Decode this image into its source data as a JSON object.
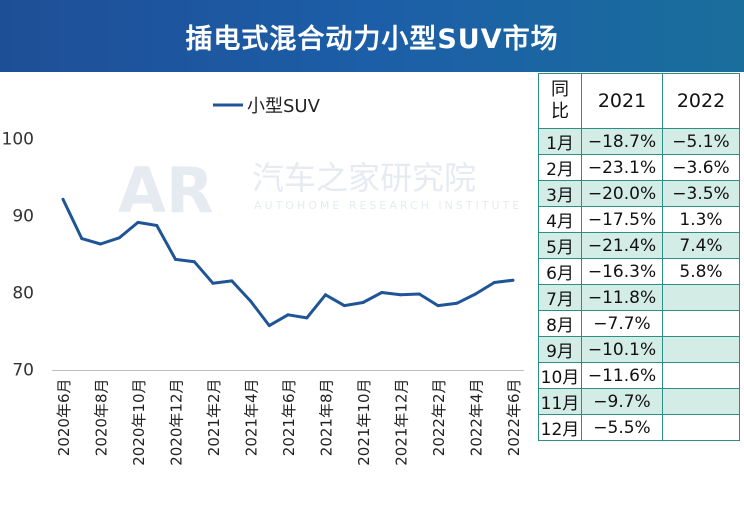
{
  "title": "插电式混合动力小型SUV市场",
  "watermark": {
    "logo": "AR",
    "cn": "汽车之家研究院",
    "en": "AUTOHOME RESEARCH INSTITUTE"
  },
  "colors": {
    "title_bar": "#1e4f96",
    "series_line": "#1f5596",
    "table_border": "#2a8f86",
    "table_shade": "#d3ece6"
  },
  "chart_data": {
    "type": "line",
    "title": "",
    "xlabel": "",
    "ylabel": "",
    "ylim": [
      70,
      100
    ],
    "yticks": [
      70,
      80,
      90,
      100
    ],
    "grid": false,
    "legend": "top-left",
    "x": [
      "2020年6月",
      "2020年7月",
      "2020年8月",
      "2020年9月",
      "2020年10月",
      "2020年11月",
      "2020年12月",
      "2021年1月",
      "2021年2月",
      "2021年3月",
      "2021年4月",
      "2021年5月",
      "2021年6月",
      "2021年7月",
      "2021年8月",
      "2021年9月",
      "2021年10月",
      "2021年11月",
      "2021年12月",
      "2022年1月",
      "2022年2月",
      "2022年3月",
      "2022年4月",
      "2022年5月",
      "2022年6月"
    ],
    "xtick_labels": [
      "2020年6月",
      "2020年8月",
      "2020年10月",
      "2020年12月",
      "2021年2月",
      "2021年4月",
      "2021年6月",
      "2021年8月",
      "2021年10月",
      "2021年12月",
      "2022年2月",
      "2022年4月",
      "2022年6月"
    ],
    "series": [
      {
        "name": "小型SUV",
        "values": [
          92.1,
          87.0,
          86.3,
          87.1,
          89.1,
          88.7,
          84.3,
          84.0,
          81.2,
          81.5,
          78.9,
          75.7,
          77.1,
          76.7,
          79.7,
          78.3,
          78.7,
          80.0,
          79.7,
          79.8,
          78.3,
          78.6,
          79.8,
          81.3,
          81.6
        ]
      }
    ]
  },
  "table": {
    "header": {
      "month": "同比",
      "col_a": "2021",
      "col_b": "2022"
    },
    "rows": [
      {
        "month": "1月",
        "a": "−18.7%",
        "b": "−5.1%"
      },
      {
        "month": "2月",
        "a": "−23.1%",
        "b": "−3.6%"
      },
      {
        "month": "3月",
        "a": "−20.0%",
        "b": "−3.5%"
      },
      {
        "month": "4月",
        "a": "−17.5%",
        "b": "1.3%"
      },
      {
        "month": "5月",
        "a": "−21.4%",
        "b": "7.4%"
      },
      {
        "month": "6月",
        "a": "−16.3%",
        "b": "5.8%"
      },
      {
        "month": "7月",
        "a": "−11.8%",
        "b": ""
      },
      {
        "month": "8月",
        "a": "−7.7%",
        "b": ""
      },
      {
        "month": "9月",
        "a": "−10.1%",
        "b": ""
      },
      {
        "month": "10月",
        "a": "−11.6%",
        "b": ""
      },
      {
        "month": "11月",
        "a": "−9.7%",
        "b": ""
      },
      {
        "month": "12月",
        "a": "−5.5%",
        "b": ""
      }
    ]
  }
}
